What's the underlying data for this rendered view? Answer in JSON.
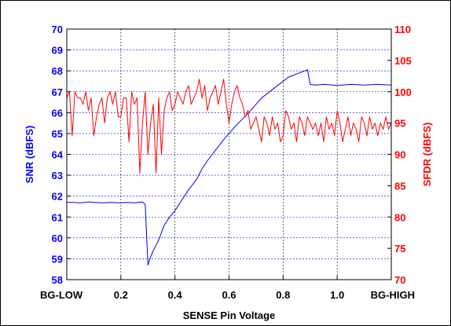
{
  "chart_data": {
    "type": "line",
    "xlabel": "SENSE Pin Voltage",
    "ylabel_left": "SNR (dBFS)",
    "ylabel_right": "SFDR (dBFS)",
    "xlim": [
      0.0,
      1.2
    ],
    "ylim_left": [
      58,
      70
    ],
    "ylim_right": [
      70,
      110
    ],
    "x_ticks": [
      {
        "value": 0.0,
        "label": "BG-LOW"
      },
      {
        "value": 0.2,
        "label": "0.2"
      },
      {
        "value": 0.4,
        "label": "0.4"
      },
      {
        "value": 0.6,
        "label": "0.6"
      },
      {
        "value": 0.8,
        "label": "0.8"
      },
      {
        "value": 1.0,
        "label": "1.0"
      },
      {
        "value": 1.2,
        "label": "BG-HIGH"
      }
    ],
    "y_ticks_left": [
      "58",
      "59",
      "60",
      "61",
      "62",
      "63",
      "64",
      "65",
      "66",
      "67",
      "68",
      "69",
      "70"
    ],
    "y_ticks_right": [
      "70",
      "75",
      "80",
      "85",
      "90",
      "95",
      "100",
      "105",
      "110"
    ],
    "grid": true,
    "colors": {
      "snr": "#0000ff",
      "sfdr": "#ff0000",
      "grid": "#000000"
    },
    "series": [
      {
        "name": "SNR",
        "axis": "left",
        "x": [
          0.0,
          0.02,
          0.05,
          0.08,
          0.1,
          0.13,
          0.16,
          0.2,
          0.22,
          0.25,
          0.28,
          0.29,
          0.3,
          0.31,
          0.32,
          0.34,
          0.36,
          0.38,
          0.4,
          0.42,
          0.45,
          0.48,
          0.5,
          0.52,
          0.55,
          0.58,
          0.6,
          0.62,
          0.65,
          0.68,
          0.7,
          0.72,
          0.75,
          0.78,
          0.8,
          0.82,
          0.85,
          0.88,
          0.89,
          0.9,
          0.92,
          0.95,
          1.0,
          1.05,
          1.1,
          1.15,
          1.2
        ],
        "y": [
          61.7,
          61.7,
          61.68,
          61.72,
          61.7,
          61.68,
          61.7,
          61.68,
          61.7,
          61.68,
          61.72,
          61.6,
          58.7,
          59.1,
          59.4,
          59.9,
          60.6,
          61.0,
          61.3,
          61.7,
          62.3,
          62.8,
          63.3,
          63.7,
          64.2,
          64.7,
          65.0,
          65.3,
          65.7,
          66.1,
          66.4,
          66.7,
          67.0,
          67.3,
          67.5,
          67.7,
          67.85,
          68.0,
          68.05,
          67.35,
          67.32,
          67.35,
          67.3,
          67.35,
          67.32,
          67.35,
          67.32
        ]
      },
      {
        "name": "SFDR",
        "axis": "right",
        "x": [
          0.0,
          0.01,
          0.02,
          0.03,
          0.04,
          0.05,
          0.06,
          0.07,
          0.08,
          0.09,
          0.1,
          0.11,
          0.12,
          0.13,
          0.14,
          0.15,
          0.16,
          0.17,
          0.18,
          0.19,
          0.2,
          0.21,
          0.22,
          0.23,
          0.24,
          0.25,
          0.26,
          0.27,
          0.28,
          0.29,
          0.3,
          0.31,
          0.32,
          0.33,
          0.34,
          0.35,
          0.36,
          0.37,
          0.38,
          0.39,
          0.4,
          0.41,
          0.42,
          0.43,
          0.44,
          0.45,
          0.46,
          0.47,
          0.48,
          0.49,
          0.5,
          0.51,
          0.52,
          0.53,
          0.54,
          0.55,
          0.56,
          0.57,
          0.58,
          0.59,
          0.6,
          0.61,
          0.62,
          0.63,
          0.64,
          0.65,
          0.66,
          0.67,
          0.68,
          0.69,
          0.7,
          0.71,
          0.72,
          0.73,
          0.74,
          0.75,
          0.76,
          0.77,
          0.78,
          0.79,
          0.8,
          0.81,
          0.82,
          0.83,
          0.84,
          0.85,
          0.86,
          0.87,
          0.88,
          0.89,
          0.9,
          0.91,
          0.92,
          0.93,
          0.94,
          0.95,
          0.96,
          0.97,
          0.98,
          0.99,
          1.0,
          1.01,
          1.02,
          1.03,
          1.04,
          1.05,
          1.06,
          1.07,
          1.08,
          1.09,
          1.1,
          1.11,
          1.12,
          1.13,
          1.14,
          1.15,
          1.16,
          1.17,
          1.18,
          1.19,
          1.2
        ],
        "y": [
          99,
          100,
          93,
          100,
          99,
          99,
          98,
          100,
          97,
          99,
          93,
          96,
          98,
          99,
          95,
          99,
          100,
          98,
          100,
          96,
          96,
          99,
          99,
          92,
          100,
          98,
          99,
          87,
          95,
          100,
          90,
          95,
          98,
          87,
          99,
          90,
          97,
          99,
          100,
          97,
          98,
          100,
          99,
          98,
          100,
          101,
          98,
          99,
          100,
          102,
          99,
          101,
          97,
          99,
          100,
          101,
          98,
          100,
          102,
          98,
          95,
          98,
          100,
          101,
          99,
          98,
          96,
          97,
          94,
          95,
          96,
          94,
          92,
          96,
          95,
          93,
          96,
          94,
          95,
          92,
          93,
          97,
          96,
          94,
          95,
          92,
          96,
          95,
          93,
          96,
          95,
          94,
          95,
          93,
          95,
          92,
          96,
          94,
          95,
          93,
          97,
          95,
          92,
          94,
          96,
          93,
          95,
          94,
          92,
          96,
          95,
          93,
          96,
          94,
          95,
          93,
          95,
          94,
          96,
          94,
          95
        ]
      }
    ]
  }
}
